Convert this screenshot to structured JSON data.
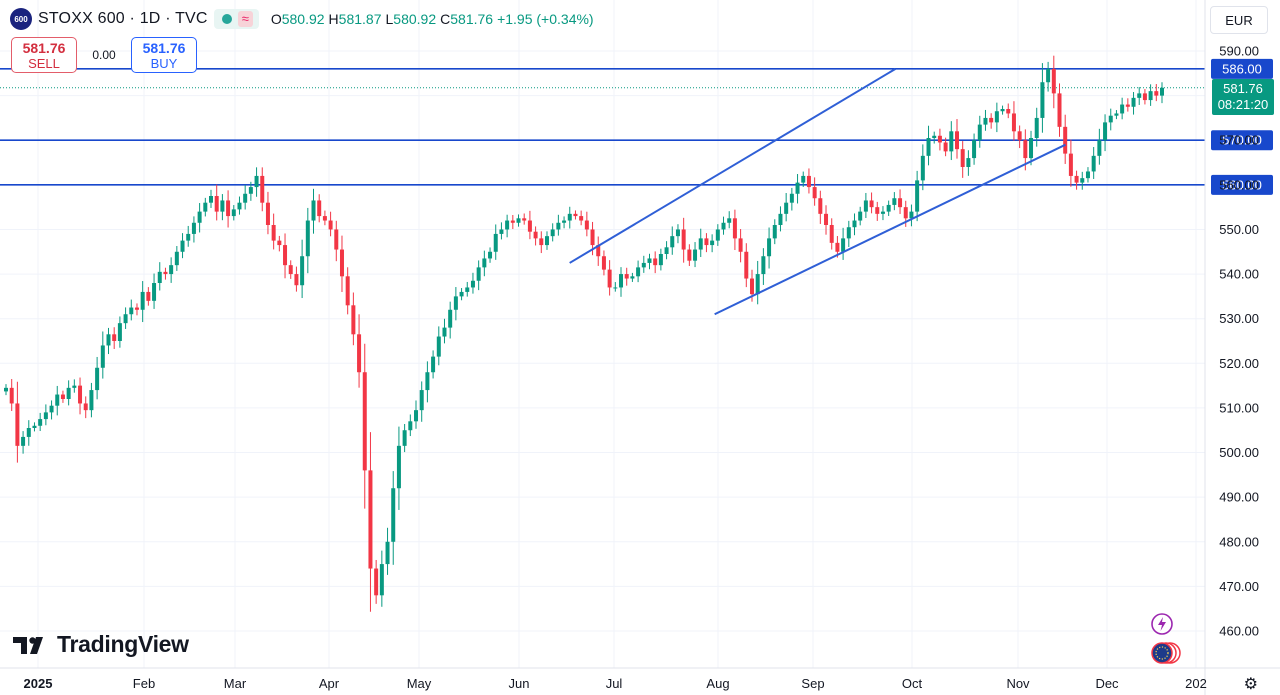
{
  "header": {
    "symbol_badge": "600",
    "title": "STOXX 600 · 1D · TVC",
    "indicator_icon": "approx-icon",
    "ohlc": [
      {
        "k": "O",
        "v": "580.92"
      },
      {
        "k": "H",
        "v": "581.87"
      },
      {
        "k": "L",
        "v": "580.92"
      },
      {
        "k": "C",
        "v": "581.76"
      },
      {
        "k": "",
        "v": "+1.95 (+0.34%)"
      }
    ]
  },
  "trade": {
    "sell_price": "581.76",
    "sell_label": "SELL",
    "spread": "0.00",
    "buy_price": "581.76",
    "buy_label": "BUY"
  },
  "currency": "EUR",
  "brand": "TradingView",
  "price_tags": {
    "last_price": "581.76",
    "countdown": "08:21:20"
  },
  "colors": {
    "up": "#089981",
    "down": "#f23645",
    "hline": "#1848cc",
    "trend": "#2f5fd6"
  },
  "chart_data": {
    "type": "candlestick",
    "ylim": [
      455,
      594
    ],
    "y_ticks": [
      "590.00",
      "580.00",
      "570.00",
      "560.00",
      "550.00",
      "540.00",
      "530.00",
      "520.00",
      "510.00",
      "500.00",
      "490.00",
      "480.00",
      "470.00",
      "460.00"
    ],
    "x_labels": [
      "2025",
      "Feb",
      "Mar",
      "Apr",
      "May",
      "Jun",
      "Jul",
      "Aug",
      "Sep",
      "Oct",
      "Nov",
      "Dec",
      "202"
    ],
    "horizontal_lines": [
      {
        "value": 586.0,
        "label": "586.00"
      },
      {
        "value": 570.0,
        "label": "570.00"
      },
      {
        "value": 560.0,
        "label": "560.00"
      }
    ],
    "trend_lines": [
      {
        "from": {
          "date": "2025-06-17",
          "price": 542.5
        },
        "to": {
          "date": "2025-09-26",
          "price": 586.0
        }
      },
      {
        "from": {
          "date": "2025-07-31",
          "price": 531.0
        },
        "to": {
          "date": "2025-11-17",
          "price": 569.0
        }
      }
    ],
    "last_price": 581.76,
    "closes": [
      514.5,
      511.0,
      501.5,
      503.5,
      505.5,
      506.0,
      507.5,
      509.0,
      510.5,
      513.0,
      512.0,
      514.5,
      515.0,
      511.0,
      509.5,
      514.0,
      519.0,
      524.0,
      526.5,
      525.0,
      529.0,
      531.0,
      532.5,
      532.0,
      536.0,
      534.0,
      538.0,
      540.5,
      540.0,
      542.0,
      545.0,
      547.5,
      549.0,
      551.5,
      554.0,
      556.0,
      557.5,
      554.0,
      556.5,
      553.0,
      554.5,
      556.0,
      558.0,
      559.5,
      562.0,
      556.0,
      551.0,
      547.5,
      546.5,
      542.0,
      540.0,
      537.5,
      544.0,
      552.0,
      556.5,
      553.0,
      552.0,
      550.0,
      545.5,
      539.5,
      533.0,
      526.5,
      518.0,
      496.0,
      474.0,
      468.0,
      475.0,
      480.0,
      492.0,
      501.5,
      505.0,
      507.0,
      509.5,
      514.0,
      518.0,
      521.5,
      526.0,
      528.0,
      532.0,
      535.0,
      536.0,
      537.0,
      538.5,
      541.5,
      543.5,
      545.0,
      549.0,
      550.0,
      552.0,
      551.5,
      552.5,
      552.0,
      549.5,
      548.0,
      546.5,
      548.5,
      550.0,
      551.5,
      552.0,
      553.5,
      553.0,
      552.0,
      550.0,
      546.5,
      544.0,
      541.0,
      537.0,
      537.0,
      540.0,
      539.0,
      539.5,
      541.5,
      542.5,
      543.5,
      542.0,
      544.5,
      546.0,
      548.5,
      550.0,
      545.5,
      543.0,
      545.5,
      548.0,
      546.5,
      547.5,
      550.0,
      551.5,
      552.5,
      548.0,
      545.0,
      539.0,
      535.5,
      540.0,
      544.0,
      548.0,
      551.0,
      553.5,
      556.0,
      558.0,
      560.5,
      562.0,
      559.5,
      557.0,
      553.5,
      551.0,
      547.0,
      545.0,
      548.0,
      550.5,
      552.0,
      554.0,
      556.5,
      555.0,
      553.5,
      554.0,
      555.5,
      557.0,
      555.0,
      552.5,
      554.0,
      561.0,
      566.5,
      570.5,
      571.0,
      569.5,
      567.5,
      572.0,
      568.0,
      564.0,
      566.0,
      570.0,
      573.5,
      575.0,
      574.0,
      576.5,
      577.0,
      576.0,
      572.0,
      570.0,
      566.0,
      570.5,
      575.0,
      583.0,
      586.0,
      580.5,
      573.0,
      567.0,
      562.0,
      560.5,
      561.5,
      563.0,
      566.5,
      570.0,
      574.0,
      575.5,
      576.0,
      578.0,
      577.5,
      579.5,
      580.5,
      579.0,
      581.0,
      580.0,
      581.76
    ]
  }
}
